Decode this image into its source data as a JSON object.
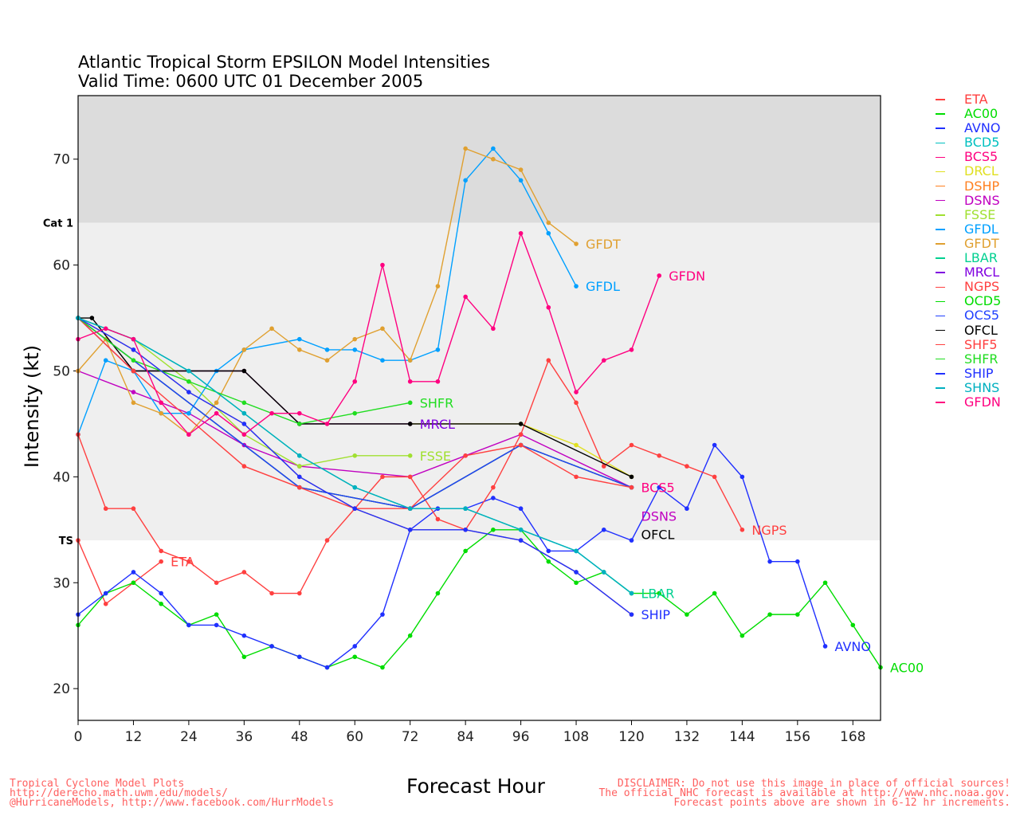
{
  "chart_data": {
    "type": "line",
    "title": [
      "Atlantic Tropical Storm EPSILON Model Intensities",
      "Valid Time: 0600 UTC 01 December 2005"
    ],
    "xlabel": "Forecast Hour",
    "ylabel": "Intensity (kt)",
    "xlim": [
      0,
      174
    ],
    "ylim": [
      17,
      76
    ],
    "xticks": [
      0,
      12,
      24,
      36,
      48,
      60,
      72,
      84,
      96,
      108,
      120,
      132,
      144,
      156,
      168
    ],
    "yticks": [
      20,
      30,
      40,
      50,
      60,
      70
    ],
    "thresholds": [
      {
        "label": "Cat 1",
        "value": 64
      },
      {
        "label": "TS",
        "value": 34
      }
    ],
    "legend_position": "right",
    "series": [
      {
        "name": "ETA",
        "color": "#ff4040",
        "label": true,
        "points": [
          [
            0,
            34
          ],
          [
            6,
            28
          ],
          [
            12,
            30
          ],
          [
            18,
            32
          ]
        ]
      },
      {
        "name": "AC00",
        "color": "#00dd00",
        "label": true,
        "points": [
          [
            0,
            26
          ],
          [
            6,
            29
          ],
          [
            12,
            30
          ],
          [
            18,
            28
          ],
          [
            24,
            26
          ],
          [
            30,
            27
          ],
          [
            36,
            23
          ],
          [
            42,
            24
          ],
          [
            48,
            23
          ],
          [
            54,
            22
          ],
          [
            60,
            23
          ],
          [
            66,
            22
          ],
          [
            72,
            25
          ],
          [
            78,
            29
          ],
          [
            84,
            33
          ],
          [
            90,
            35
          ],
          [
            96,
            35
          ],
          [
            102,
            32
          ],
          [
            108,
            30
          ],
          [
            114,
            31
          ],
          [
            120,
            29
          ],
          [
            126,
            29
          ],
          [
            132,
            27
          ],
          [
            138,
            29
          ],
          [
            144,
            25
          ],
          [
            150,
            27
          ],
          [
            156,
            27
          ],
          [
            162,
            30
          ],
          [
            168,
            26
          ],
          [
            174,
            22
          ]
        ]
      },
      {
        "name": "AVNO",
        "color": "#2030ff",
        "label": true,
        "points": [
          [
            0,
            27
          ],
          [
            6,
            29
          ],
          [
            12,
            31
          ],
          [
            18,
            29
          ],
          [
            24,
            26
          ],
          [
            30,
            26
          ],
          [
            36,
            25
          ],
          [
            42,
            24
          ],
          [
            48,
            23
          ],
          [
            54,
            22
          ],
          [
            60,
            24
          ],
          [
            66,
            27
          ],
          [
            72,
            35
          ],
          [
            78,
            37
          ],
          [
            84,
            37
          ],
          [
            90,
            38
          ],
          [
            96,
            37
          ],
          [
            102,
            33
          ],
          [
            108,
            33
          ],
          [
            114,
            35
          ],
          [
            120,
            34
          ],
          [
            126,
            39
          ],
          [
            132,
            37
          ],
          [
            138,
            43
          ],
          [
            144,
            40
          ],
          [
            150,
            32
          ],
          [
            156,
            32
          ],
          [
            162,
            24
          ]
        ]
      },
      {
        "name": "BCD5",
        "color": "#00c0c0",
        "label": false,
        "points": [
          [
            0,
            55
          ],
          [
            48,
            39
          ],
          [
            72,
            37
          ],
          [
            96,
            43
          ],
          [
            120,
            39
          ]
        ]
      },
      {
        "name": "BCS5",
        "color": "#ff0080",
        "label": true,
        "points": [
          [
            0,
            55
          ],
          [
            48,
            39
          ],
          [
            72,
            37
          ],
          [
            96,
            43
          ],
          [
            120,
            39
          ]
        ]
      },
      {
        "name": "DRCL",
        "color": "#e0e020",
        "label": false,
        "points": [
          [
            0,
            55
          ],
          [
            12,
            50
          ],
          [
            36,
            50
          ],
          [
            48,
            45
          ],
          [
            72,
            45
          ],
          [
            96,
            45
          ],
          [
            108,
            43
          ],
          [
            120,
            40
          ]
        ]
      },
      {
        "name": "DSHP",
        "color": "#ff8020",
        "label": false,
        "points": [
          [
            0,
            55
          ],
          [
            12,
            52
          ],
          [
            24,
            48
          ],
          [
            36,
            45
          ],
          [
            48,
            40
          ],
          [
            60,
            37
          ],
          [
            72,
            35
          ],
          [
            84,
            35
          ],
          [
            96,
            34
          ],
          [
            108,
            31
          ],
          [
            120,
            27
          ]
        ]
      },
      {
        "name": "DSNS",
        "color": "#c000c0",
        "label": true,
        "points": [
          [
            0,
            50
          ],
          [
            12,
            48
          ],
          [
            24,
            46
          ],
          [
            36,
            43
          ],
          [
            48,
            41
          ],
          [
            72,
            40
          ],
          [
            84,
            42
          ],
          [
            96,
            44
          ],
          [
            120,
            39
          ]
        ]
      },
      {
        "name": "FSSE",
        "color": "#a0e030",
        "label": true,
        "points": [
          [
            0,
            55
          ],
          [
            12,
            53
          ],
          [
            24,
            49
          ],
          [
            36,
            44
          ],
          [
            48,
            41
          ],
          [
            60,
            42
          ],
          [
            72,
            42
          ]
        ]
      },
      {
        "name": "GFDL",
        "color": "#00a0ff",
        "label": true,
        "points": [
          [
            0,
            44
          ],
          [
            6,
            51
          ],
          [
            12,
            50
          ],
          [
            18,
            46
          ],
          [
            24,
            46
          ],
          [
            30,
            50
          ],
          [
            36,
            52
          ],
          [
            48,
            53
          ],
          [
            54,
            52
          ],
          [
            60,
            52
          ],
          [
            66,
            51
          ],
          [
            72,
            51
          ],
          [
            78,
            52
          ],
          [
            84,
            68
          ],
          [
            90,
            71
          ],
          [
            96,
            68
          ],
          [
            102,
            63
          ],
          [
            108,
            58
          ]
        ]
      },
      {
        "name": "GFDT",
        "color": "#e0a030",
        "label": true,
        "points": [
          [
            0,
            50
          ],
          [
            6,
            53
          ],
          [
            12,
            47
          ],
          [
            18,
            46
          ],
          [
            24,
            44
          ],
          [
            30,
            47
          ],
          [
            36,
            52
          ],
          [
            42,
            54
          ],
          [
            48,
            52
          ],
          [
            54,
            51
          ],
          [
            60,
            53
          ],
          [
            66,
            54
          ],
          [
            72,
            51
          ],
          [
            78,
            58
          ],
          [
            84,
            71
          ],
          [
            90,
            70
          ],
          [
            96,
            69
          ],
          [
            102,
            64
          ],
          [
            108,
            62
          ]
        ]
      },
      {
        "name": "LBAR",
        "color": "#00d090",
        "label": true,
        "points": [
          [
            0,
            55
          ],
          [
            12,
            53
          ],
          [
            24,
            50
          ],
          [
            36,
            46
          ],
          [
            48,
            42
          ],
          [
            60,
            39
          ],
          [
            72,
            37
          ],
          [
            84,
            37
          ],
          [
            96,
            35
          ],
          [
            108,
            33
          ],
          [
            114,
            31
          ],
          [
            120,
            29
          ]
        ]
      },
      {
        "name": "MRCL",
        "color": "#8000e0",
        "label": true,
        "points": [
          [
            0,
            55
          ],
          [
            12,
            50
          ],
          [
            36,
            50
          ],
          [
            48,
            45
          ],
          [
            72,
            45
          ]
        ]
      },
      {
        "name": "NGPS",
        "color": "#ff4040",
        "label": true,
        "points": [
          [
            0,
            44
          ],
          [
            6,
            37
          ],
          [
            12,
            37
          ],
          [
            18,
            33
          ],
          [
            24,
            32
          ],
          [
            30,
            30
          ],
          [
            36,
            31
          ],
          [
            42,
            29
          ],
          [
            48,
            29
          ],
          [
            54,
            34
          ],
          [
            60,
            37
          ],
          [
            66,
            40
          ],
          [
            72,
            40
          ],
          [
            78,
            36
          ],
          [
            84,
            35
          ],
          [
            90,
            39
          ],
          [
            96,
            44
          ],
          [
            102,
            51
          ],
          [
            108,
            47
          ],
          [
            114,
            41
          ],
          [
            120,
            43
          ],
          [
            126,
            42
          ],
          [
            132,
            41
          ],
          [
            138,
            40
          ],
          [
            144,
            35
          ]
        ]
      },
      {
        "name": "OCD5",
        "color": "#00dd00",
        "label": false,
        "points": [
          [
            0,
            55
          ],
          [
            48,
            39
          ],
          [
            72,
            37
          ],
          [
            96,
            43
          ],
          [
            120,
            39
          ]
        ]
      },
      {
        "name": "OCS5",
        "color": "#2040ff",
        "label": false,
        "points": [
          [
            0,
            55
          ],
          [
            48,
            39
          ],
          [
            72,
            37
          ],
          [
            96,
            43
          ],
          [
            120,
            39
          ]
        ]
      },
      {
        "name": "OFCL",
        "color": "#000000",
        "label": true,
        "points": [
          [
            0,
            55
          ],
          [
            3,
            55
          ],
          [
            12,
            50
          ],
          [
            36,
            50
          ],
          [
            48,
            45
          ],
          [
            72,
            45
          ],
          [
            96,
            45
          ],
          [
            120,
            40
          ]
        ]
      },
      {
        "name": "SHF5",
        "color": "#ff4040",
        "label": false,
        "points": [
          [
            0,
            55
          ],
          [
            12,
            50
          ],
          [
            36,
            41
          ],
          [
            48,
            39
          ],
          [
            60,
            37
          ],
          [
            72,
            37
          ],
          [
            84,
            42
          ],
          [
            96,
            43
          ],
          [
            108,
            40
          ],
          [
            120,
            39
          ]
        ]
      },
      {
        "name": "SHFR",
        "color": "#20dd20",
        "label": true,
        "points": [
          [
            0,
            55
          ],
          [
            12,
            51
          ],
          [
            24,
            49
          ],
          [
            36,
            47
          ],
          [
            48,
            45
          ],
          [
            60,
            46
          ],
          [
            72,
            47
          ]
        ]
      },
      {
        "name": "SHIP",
        "color": "#2030ff",
        "label": true,
        "points": [
          [
            0,
            55
          ],
          [
            12,
            52
          ],
          [
            24,
            48
          ],
          [
            36,
            45
          ],
          [
            48,
            40
          ],
          [
            60,
            37
          ],
          [
            72,
            35
          ],
          [
            84,
            35
          ],
          [
            96,
            34
          ],
          [
            108,
            31
          ],
          [
            120,
            27
          ]
        ]
      },
      {
        "name": "SHNS",
        "color": "#00b0c0",
        "label": false,
        "points": [
          [
            0,
            55
          ],
          [
            12,
            53
          ],
          [
            24,
            50
          ],
          [
            36,
            46
          ],
          [
            48,
            42
          ],
          [
            60,
            39
          ],
          [
            72,
            37
          ],
          [
            84,
            37
          ],
          [
            96,
            35
          ],
          [
            108,
            33
          ],
          [
            114,
            31
          ],
          [
            120,
            29
          ]
        ]
      },
      {
        "name": "GFDN",
        "color": "#ff0080",
        "label": true,
        "points": [
          [
            0,
            53
          ],
          [
            6,
            54
          ],
          [
            12,
            53
          ],
          [
            18,
            47
          ],
          [
            24,
            44
          ],
          [
            30,
            46
          ],
          [
            36,
            44
          ],
          [
            42,
            46
          ],
          [
            48,
            46
          ],
          [
            54,
            45
          ],
          [
            60,
            49
          ],
          [
            66,
            60
          ],
          [
            72,
            49
          ],
          [
            78,
            49
          ],
          [
            84,
            57
          ],
          [
            90,
            54
          ],
          [
            96,
            63
          ],
          [
            102,
            56
          ],
          [
            108,
            48
          ],
          [
            114,
            51
          ],
          [
            120,
            52
          ],
          [
            126,
            59
          ]
        ]
      }
    ]
  },
  "footer_left": [
    "Tropical Cyclone Model Plots",
    "http://derecho.math.uwm.edu/models/",
    "@HurricaneModels, http://www.facebook.com/HurrModels"
  ],
  "footer_right": [
    "DISCLAIMER: Do not use this image in place of official sources!",
    "The official NHC forecast is available at http://www.nhc.noaa.gov.",
    "Forecast points above are shown in 6-12 hr increments."
  ]
}
